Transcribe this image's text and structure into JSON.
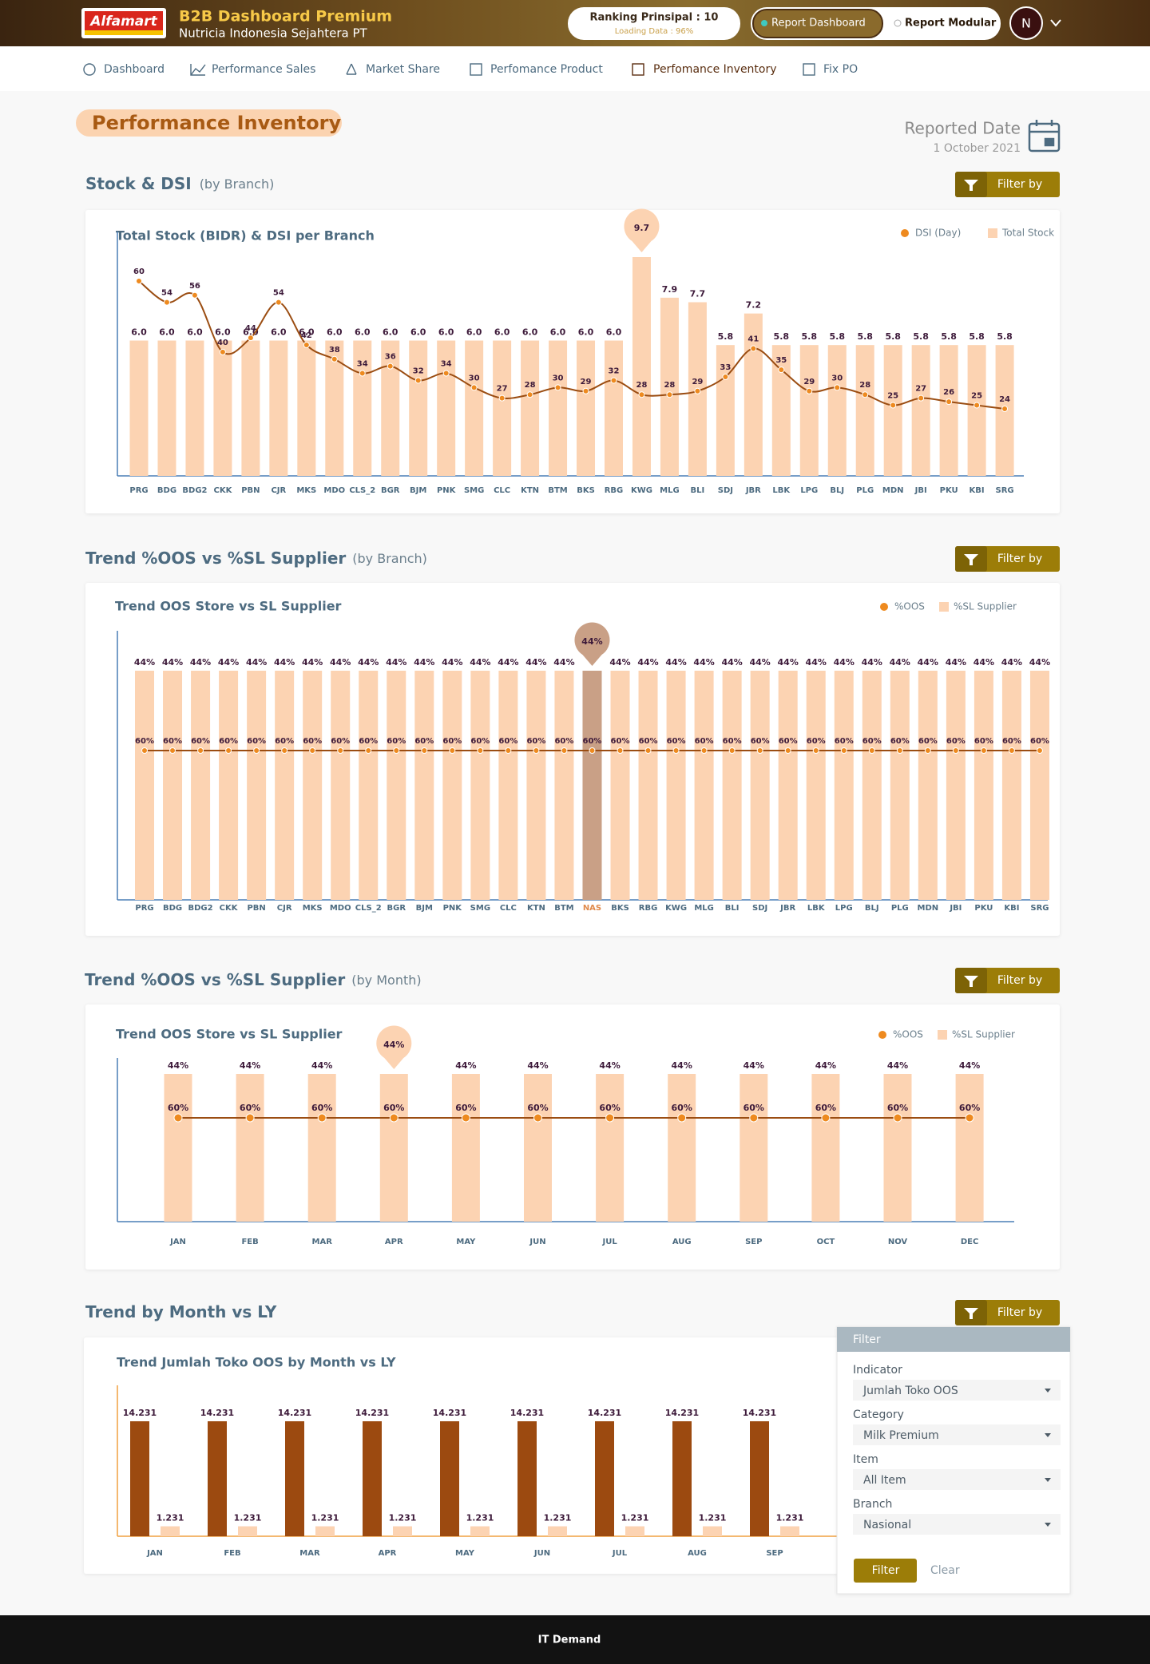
{
  "header": {
    "logo": "Alfamart",
    "title": "B2B Dashboard Premium",
    "company": "Nutricia Indonesia Sejahtera PT",
    "ranking": "Ranking Prinsipal : 10",
    "loading": "Loading Data : 96%",
    "toggle": [
      "Report Dashboard",
      "Report Modular"
    ],
    "avatar": "N"
  },
  "nav": [
    "Dashboard",
    "Performance Sales",
    "Market Share",
    "Perfomance Product",
    "Perfomance Inventory",
    "Fix PO"
  ],
  "page": {
    "title": "Performance Inventory",
    "reported_label": "Reported Date",
    "reported_date": "1 October 2021"
  },
  "sections": [
    {
      "title": "Stock & DSI",
      "subtitle": "(by Branch)",
      "button": "Filter by"
    },
    {
      "title": "Trend %OOS vs %SL Supplier",
      "subtitle": "(by Branch)",
      "button": "Filter by"
    },
    {
      "title": "Trend %OOS vs %SL Supplier",
      "subtitle": "(by Month)",
      "button": "Filter by"
    },
    {
      "title": "Trend by Month vs LY",
      "button": "Filter by"
    }
  ],
  "filter_panel": {
    "title": "Filter",
    "fields": [
      {
        "label": "Indicator",
        "value": "Jumlah Toko OOS"
      },
      {
        "label": "Category",
        "value": "Milk Premium"
      },
      {
        "label": "Item",
        "value": "All Item"
      },
      {
        "label": "Branch",
        "value": "Nasional"
      }
    ],
    "apply": "Filter",
    "clear": "Clear"
  },
  "footer": "IT Demand",
  "chart_data": [
    {
      "type": "combo",
      "title": "Total Stock (BIDR) & DSI per Branch",
      "categories": [
        "PRG",
        "BDG",
        "BDG2",
        "CKK",
        "PBN",
        "CJR",
        "MKS",
        "MDO",
        "CLS_2",
        "BGR",
        "BJM",
        "PNK",
        "SMG",
        "CLC",
        "KTN",
        "BTM",
        "BKS",
        "RBG",
        "KWG",
        "MLG",
        "BLI",
        "SDJ",
        "JBR",
        "LBK",
        "LPG",
        "BLJ",
        "PLG",
        "MDN",
        "JBI",
        "PKU",
        "KBI",
        "SRG"
      ],
      "series": [
        {
          "name": "DSI (Day)",
          "type": "line",
          "color": "#ee8a1f",
          "line_color": "#9b4d12",
          "values": [
            60,
            54,
            56,
            40,
            44,
            54,
            42,
            38,
            34,
            36,
            32,
            34,
            30,
            27,
            28,
            30,
            29,
            32,
            28,
            28,
            29,
            33,
            41,
            35,
            29,
            30,
            28,
            25,
            27,
            26,
            25,
            24
          ]
        },
        {
          "name": "Total Stock",
          "type": "bar",
          "color": "#fcd3b2",
          "values": [
            6.0,
            6.0,
            6.0,
            6.0,
            6.0,
            6.0,
            6.0,
            6.0,
            6.0,
            6.0,
            6.0,
            6.0,
            6.0,
            6.0,
            6.0,
            6.0,
            6.0,
            6.0,
            9.7,
            7.9,
            7.7,
            5.8,
            7.2,
            5.8,
            5.8,
            5.8,
            5.8,
            5.8,
            5.8,
            5.8,
            5.8,
            5.8
          ],
          "value_labels": [
            "6.0",
            "6.0",
            "6.0",
            "6.0",
            "6.0",
            "6.0",
            "6.0",
            "6.0",
            "6.0",
            "6.0",
            "6.0",
            "6.0",
            "6.0",
            "6.0",
            "6.0",
            "6.0",
            "6.0",
            "6.0",
            "9.7",
            "7.9",
            "7.7",
            "5.8",
            "7.2",
            "5.8",
            "5.8",
            "5.8",
            "5.8",
            "5.8",
            "5.8",
            "5.8",
            "5.8",
            "5.8"
          ]
        }
      ],
      "highlight": "KWG"
    },
    {
      "type": "combo",
      "title": "Trend OOS Store vs SL Supplier",
      "categories": [
        "PRG",
        "BDG",
        "BDG2",
        "CKK",
        "PBN",
        "CJR",
        "MKS",
        "MDO",
        "CLS_2",
        "BGR",
        "BJM",
        "PNK",
        "SMG",
        "CLC",
        "KTN",
        "BTM",
        "NAS",
        "BKS",
        "RBG",
        "KWG",
        "MLG",
        "BLI",
        "SDJ",
        "JBR",
        "LBK",
        "LPG",
        "BLJ",
        "PLG",
        "MDN",
        "JBI",
        "PKU",
        "KBI",
        "SRG"
      ],
      "series": [
        {
          "name": "%OOS",
          "type": "line",
          "color": "#ee8a1f",
          "line_color": "#9b4d12",
          "values": [
            60,
            60,
            60,
            60,
            60,
            60,
            60,
            60,
            60,
            60,
            60,
            60,
            60,
            60,
            60,
            60,
            60,
            60,
            60,
            60,
            60,
            60,
            60,
            60,
            60,
            60,
            60,
            60,
            60,
            60,
            60,
            60,
            60
          ],
          "value_labels": [
            "60%",
            "60%",
            "60%",
            "60%",
            "60%",
            "60%",
            "60%",
            "60%",
            "60%",
            "60%",
            "60%",
            "60%",
            "60%",
            "60%",
            "60%",
            "60%",
            "60%",
            "60%",
            "60%",
            "60%",
            "60%",
            "60%",
            "60%",
            "60%",
            "60%",
            "60%",
            "60%",
            "60%",
            "60%",
            "60%",
            "60%",
            "60%",
            "60%"
          ]
        },
        {
          "name": "%SL Supplier",
          "type": "bar",
          "color": "#fcd3b2",
          "values": [
            44,
            44,
            44,
            44,
            44,
            44,
            44,
            44,
            44,
            44,
            44,
            44,
            44,
            44,
            44,
            44,
            44,
            44,
            44,
            44,
            44,
            44,
            44,
            44,
            44,
            44,
            44,
            44,
            44,
            44,
            44,
            44,
            44
          ],
          "value_labels": [
            "44%",
            "44%",
            "44%",
            "44%",
            "44%",
            "44%",
            "44%",
            "44%",
            "44%",
            "44%",
            "44%",
            "44%",
            "44%",
            "44%",
            "44%",
            "44%",
            "44%",
            "44%",
            "44%",
            "44%",
            "44%",
            "44%",
            "44%",
            "44%",
            "44%",
            "44%",
            "44%",
            "44%",
            "44%",
            "44%",
            "44%",
            "44%",
            "44%"
          ]
        }
      ],
      "highlight": "NAS",
      "highlight_color": "#c9a086"
    },
    {
      "type": "combo",
      "title": "Trend OOS Store vs SL Supplier",
      "categories": [
        "JAN",
        "FEB",
        "MAR",
        "APR",
        "MAY",
        "JUN",
        "JUL",
        "AUG",
        "SEP",
        "OCT",
        "NOV",
        "DEC"
      ],
      "series": [
        {
          "name": "%OOS",
          "type": "line",
          "color": "#ee8a1f",
          "line_color": "#9b4d12",
          "values": [
            60,
            60,
            60,
            60,
            60,
            60,
            60,
            60,
            60,
            60,
            60,
            60
          ],
          "value_labels": [
            "60%",
            "60%",
            "60%",
            "60%",
            "60%",
            "60%",
            "60%",
            "60%",
            "60%",
            "60%",
            "60%",
            "60%"
          ]
        },
        {
          "name": "%SL Supplier",
          "type": "bar",
          "color": "#fcd3b2",
          "values": [
            44,
            44,
            44,
            44,
            44,
            44,
            44,
            44,
            44,
            44,
            44,
            44
          ],
          "value_labels": [
            "44%",
            "44%",
            "44%",
            "44%",
            "44%",
            "44%",
            "44%",
            "44%",
            "44%",
            "44%",
            "44%",
            "44%"
          ]
        }
      ],
      "highlight": "APR"
    },
    {
      "type": "bar",
      "title": "Trend Jumlah Toko OOS by Month vs LY",
      "categories": [
        "JAN",
        "FEB",
        "MAR",
        "APR",
        "MAY",
        "JUN",
        "JUL",
        "AUG",
        "SEP"
      ],
      "series": [
        {
          "color": "#9c4a10",
          "values": [
            14.231,
            14.231,
            14.231,
            14.231,
            14.231,
            14.231,
            14.231,
            14.231,
            14.231
          ]
        },
        {
          "color": "#fcd3b2",
          "values": [
            1.231,
            1.231,
            1.231,
            1.231,
            1.231,
            1.231,
            1.231,
            1.231,
            1.231
          ]
        }
      ]
    }
  ]
}
